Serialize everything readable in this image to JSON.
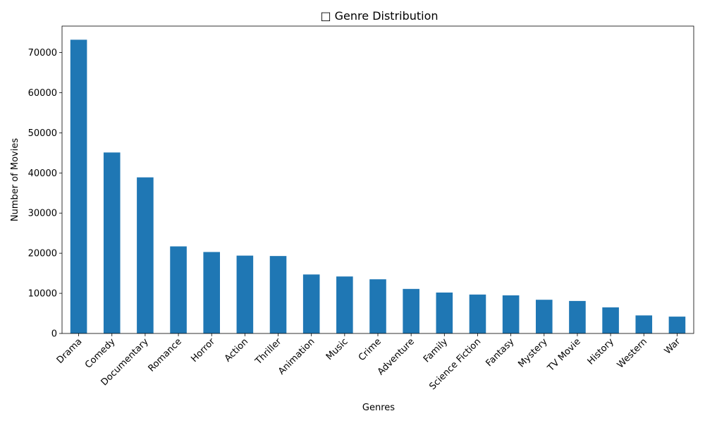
{
  "chart_data": {
    "type": "bar",
    "title": "□ Genre Distribution",
    "xlabel": "Genres",
    "ylabel": "Number of Movies",
    "categories": [
      "Drama",
      "Comedy",
      "Documentary",
      "Romance",
      "Horror",
      "Action",
      "Thriller",
      "Animation",
      "Music",
      "Crime",
      "Adventure",
      "Family",
      "Science Fiction",
      "Fantasy",
      "Mystery",
      "TV Movie",
      "History",
      "Western",
      "War"
    ],
    "values": [
      73200,
      45100,
      38900,
      21700,
      20300,
      19400,
      19300,
      14700,
      14200,
      13500,
      11100,
      10200,
      9700,
      9500,
      8400,
      8100,
      6500,
      4500,
      4200
    ],
    "ylim": [
      0,
      76600
    ],
    "yticks": [
      0,
      10000,
      20000,
      30000,
      40000,
      50000,
      60000,
      70000
    ],
    "grid": false,
    "legend": false,
    "bar_color": "#1f77b4"
  }
}
